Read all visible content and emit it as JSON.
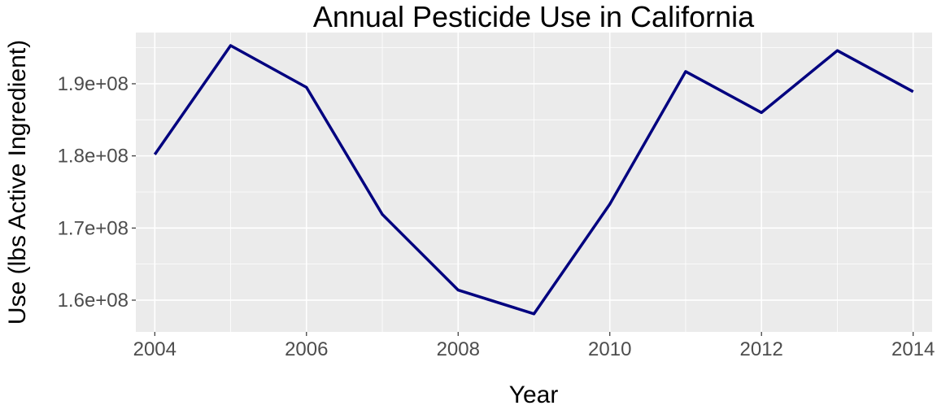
{
  "chart_data": {
    "type": "line",
    "title": "Annual Pesticide Use in California",
    "xlabel": "Year",
    "ylabel": "Use (lbs Active Ingredient)",
    "x": [
      2004,
      2005,
      2006,
      2007,
      2008,
      2009,
      2010,
      2011,
      2012,
      2013,
      2014
    ],
    "series": [
      {
        "values": [
          180200000,
          195300000,
          189500000,
          171900000,
          161400000,
          158100000,
          173300000,
          191700000,
          186000000,
          194600000,
          188900000
        ],
        "color": "#00007F"
      }
    ],
    "xlim": [
      2003.75,
      2014.25
    ],
    "ylim": [
      155600000,
      197100000
    ],
    "x_ticks": [
      2004,
      2006,
      2008,
      2010,
      2012,
      2014
    ],
    "x_tick_labels": [
      "2004",
      "2006",
      "2008",
      "2010",
      "2012",
      "2014"
    ],
    "y_ticks": [
      160000000,
      170000000,
      180000000,
      190000000
    ],
    "y_tick_labels": [
      "1.6e+08",
      "1.7e+08",
      "1.8e+08",
      "1.9e+08"
    ],
    "grid": true,
    "panel_background": "#EBEBEB",
    "grid_color": "#FFFFFF",
    "tick_label_color": "#4D4D4D"
  }
}
